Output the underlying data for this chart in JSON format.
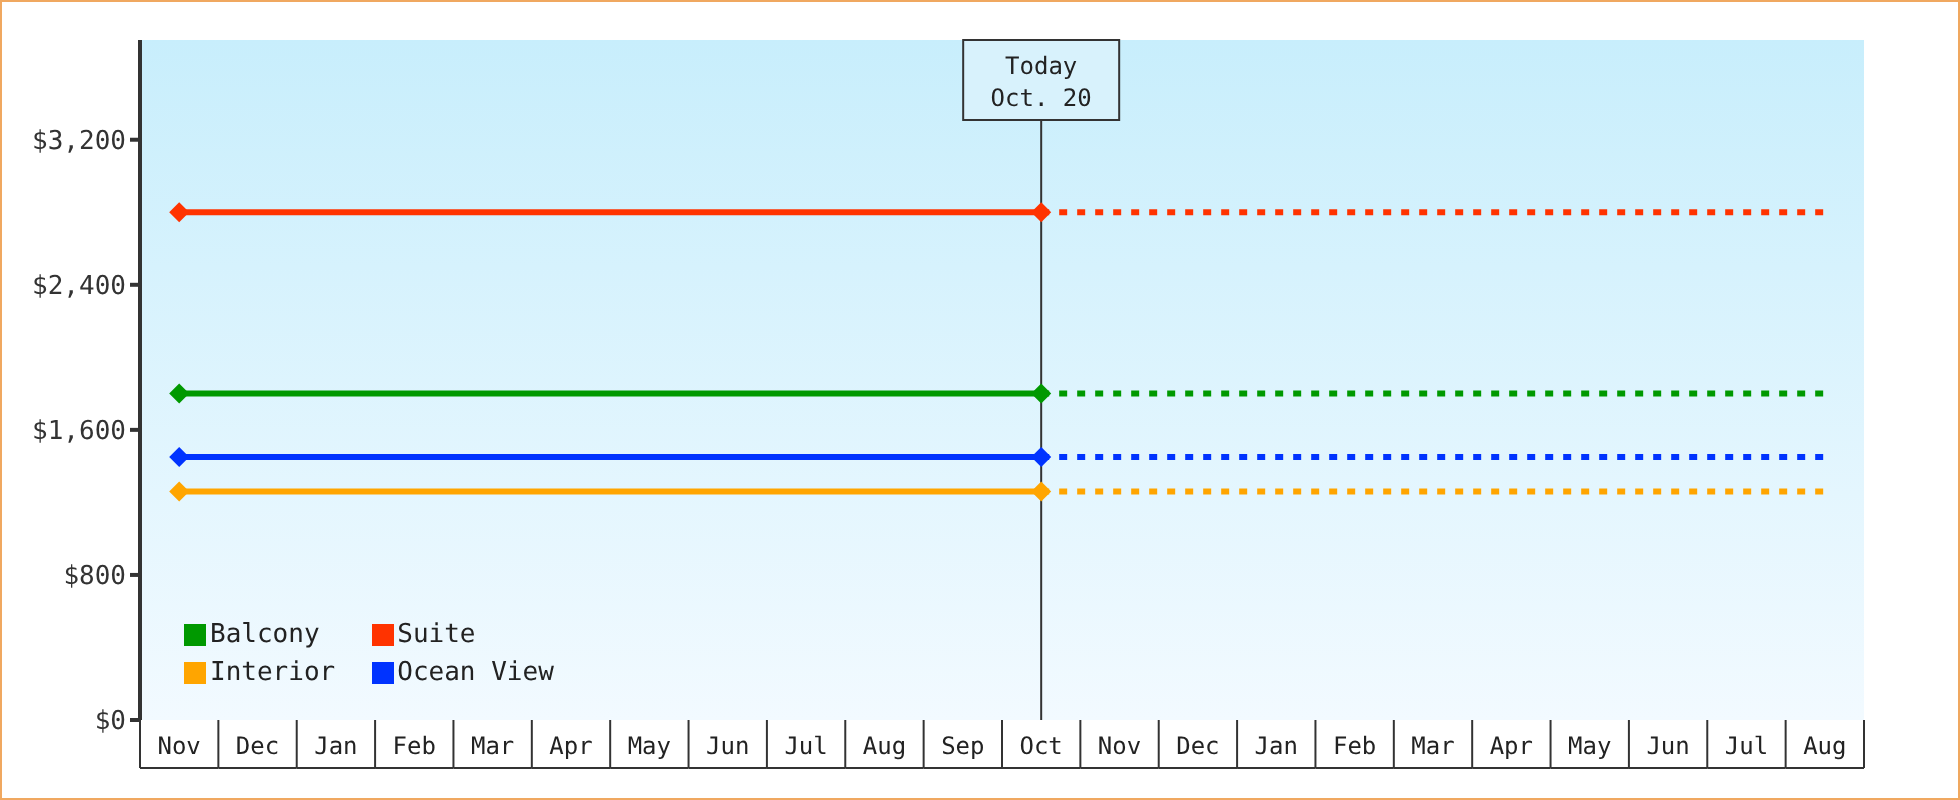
{
  "chart_data": {
    "type": "line",
    "categories": [
      "Nov",
      "Dec",
      "Jan",
      "Feb",
      "Mar",
      "Apr",
      "May",
      "Jun",
      "Jul",
      "Aug",
      "Sep",
      "Oct",
      "Nov",
      "Dec",
      "Jan",
      "Feb",
      "Mar",
      "Apr",
      "May",
      "Jun",
      "Jul",
      "Aug"
    ],
    "ylim": [
      0,
      3750
    ],
    "yticks": [
      {
        "value": 0,
        "label": "$0"
      },
      {
        "value": 800,
        "label": "$800"
      },
      {
        "value": 1600,
        "label": "$1,600"
      },
      {
        "value": 2400,
        "label": "$2,400"
      },
      {
        "value": 3200,
        "label": "$3,200"
      }
    ],
    "series": [
      {
        "name": "Balcony",
        "color": "#009900",
        "values": [
          1800,
          null,
          null,
          null,
          null,
          null,
          null,
          null,
          null,
          null,
          null,
          1800,
          null,
          null,
          null,
          null,
          null,
          null,
          null,
          null,
          null,
          null
        ],
        "marker": "diamond",
        "line_style": "solid"
      },
      {
        "name": "Suite",
        "color": "#ff3300",
        "values": [
          2800,
          null,
          null,
          null,
          null,
          null,
          null,
          null,
          null,
          null,
          null,
          2800,
          null,
          null,
          null,
          null,
          null,
          null,
          null,
          null,
          null,
          null
        ],
        "marker": "diamond",
        "line_style": "solid"
      },
      {
        "name": "Interior",
        "color": "#ffa500",
        "values": [
          1260,
          null,
          null,
          null,
          null,
          null,
          null,
          null,
          null,
          null,
          null,
          1260,
          null,
          null,
          null,
          null,
          null,
          null,
          null,
          null,
          null,
          null
        ],
        "marker": "diamond",
        "line_style": "solid"
      },
      {
        "name": "Ocean View",
        "color": "#0033ff",
        "values": [
          1450,
          null,
          null,
          null,
          null,
          null,
          null,
          null,
          null,
          null,
          null,
          1450,
          null,
          null,
          null,
          null,
          null,
          null,
          null,
          null,
          null,
          null
        ],
        "marker": "diamond",
        "line_style": "solid"
      },
      {
        "color": "#009900",
        "values": [
          null,
          null,
          null,
          null,
          null,
          null,
          null,
          null,
          null,
          null,
          null,
          1800,
          null,
          null,
          null,
          null,
          null,
          null,
          null,
          null,
          null,
          1800
        ],
        "marker": "none",
        "line_style": "dotted"
      },
      {
        "color": "#ff3300",
        "values": [
          null,
          null,
          null,
          null,
          null,
          null,
          null,
          null,
          null,
          null,
          null,
          2800,
          null,
          null,
          null,
          null,
          null,
          null,
          null,
          null,
          null,
          2800
        ],
        "marker": "none",
        "line_style": "dotted"
      },
      {
        "color": "#ffa500",
        "values": [
          null,
          null,
          null,
          null,
          null,
          null,
          null,
          null,
          null,
          null,
          null,
          1260,
          null,
          null,
          null,
          null,
          null,
          null,
          null,
          null,
          null,
          1260
        ],
        "marker": "none",
        "line_style": "dotted"
      },
      {
        "color": "#0033ff",
        "values": [
          null,
          null,
          null,
          null,
          null,
          null,
          null,
          null,
          null,
          null,
          null,
          1450,
          null,
          null,
          null,
          null,
          null,
          null,
          null,
          null,
          null,
          1450
        ],
        "marker": "none",
        "line_style": "dotted"
      }
    ],
    "ref_lines": [
      {
        "axis": "x",
        "value": "Oct",
        "label": "Today\nOct. 20",
        "color": "#333333"
      }
    ],
    "legend": "bottom left",
    "grid": false
  }
}
